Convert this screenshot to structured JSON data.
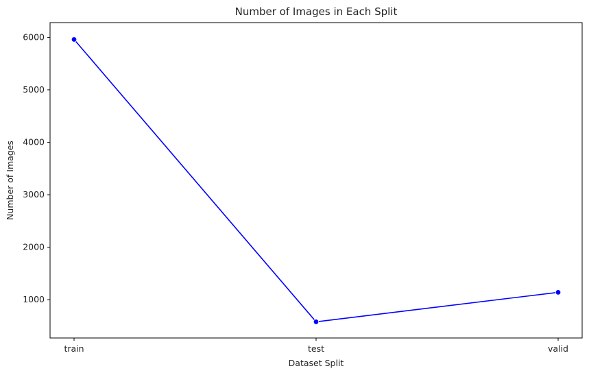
{
  "chart_data": {
    "type": "line",
    "title": "Number of Images in Each Split",
    "xlabel": "Dataset Split",
    "ylabel": "Number of Images",
    "categories": [
      "train",
      "test",
      "valid"
    ],
    "series": [
      {
        "values": [
          5960,
          578,
          1140
        ],
        "color": "#0000ff",
        "marker": "circle"
      }
    ],
    "ylim": [
      270,
      6280
    ],
    "yticks": [
      1000,
      2000,
      3000,
      4000,
      5000,
      6000
    ],
    "grid": false,
    "legend": "none"
  }
}
